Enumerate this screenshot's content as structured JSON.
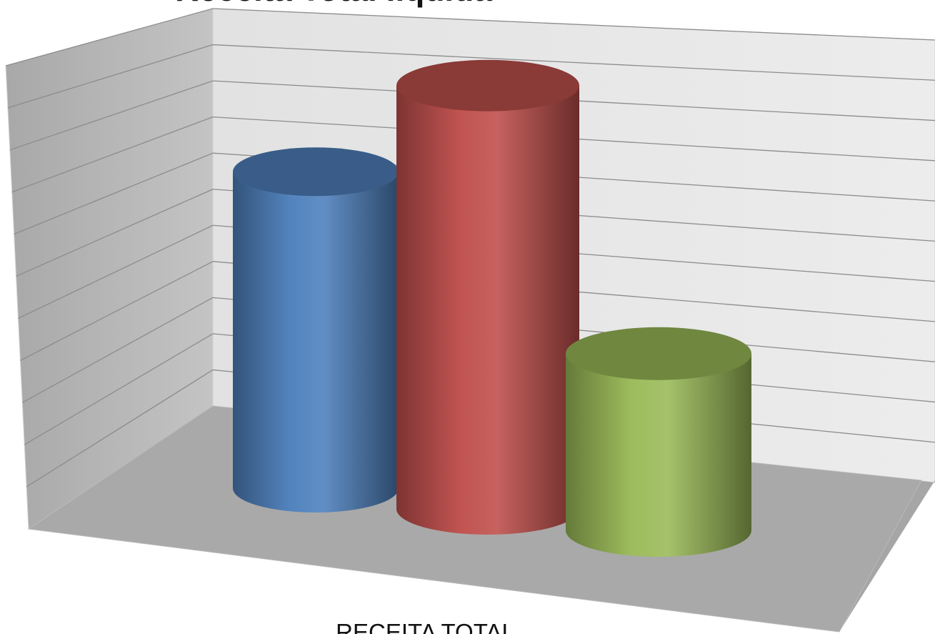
{
  "title": "Receita Total líquida",
  "chart_data": {
    "type": "bar",
    "style": "3d-cylinder",
    "title": "Receita Total líquida",
    "categories": [
      "RECEITA TOTAL"
    ],
    "series": [
      {
        "values": [
          7.7
        ],
        "color": "#4F81BD"
      },
      {
        "values": [
          10.3
        ],
        "color": "#C0504D"
      },
      {
        "values": [
          4.3
        ],
        "color": "#9BBB59"
      }
    ],
    "ylim": [
      0,
      11
    ],
    "grid": true,
    "legend": "none"
  }
}
